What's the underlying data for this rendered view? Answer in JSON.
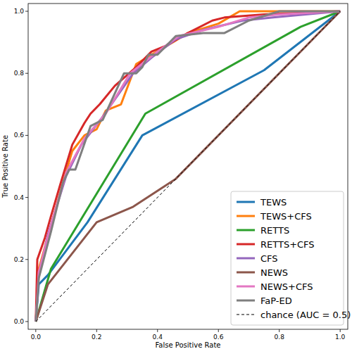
{
  "chart_data": {
    "type": "line",
    "x_label": "False Positive Rate",
    "y_label": "True Positive Rate",
    "xlim": [
      -0.025,
      1.025
    ],
    "ylim": [
      -0.025,
      1.025
    ],
    "xticks": [
      {
        "value": 0,
        "label": "0.0"
      },
      0.2,
      0.4,
      0.6,
      0.8,
      {
        "value": 1,
        "label": "1.0"
      }
    ],
    "yticks": [
      {
        "value": 0,
        "label": "0.0"
      },
      0.2,
      0.4,
      0.6,
      0.8,
      {
        "value": 1,
        "label": "1.0"
      }
    ],
    "grid": false,
    "legend": "lower right",
    "series": [
      {
        "name": "TEWS",
        "color": "#1f77b4",
        "line_style": "solid",
        "x": [
          0,
          0.01,
          0.04,
          0.17,
          0.35,
          0.75,
          1
        ],
        "values": [
          0,
          0.12,
          0.15,
          0.32,
          0.6,
          0.81,
          1
        ]
      },
      {
        "name": "TEWS+CFS",
        "color": "#ff7f0e",
        "line_style": "solid",
        "x": [
          0,
          0.01,
          0.05,
          0.09,
          0.12,
          0.16,
          0.2,
          0.23,
          0.28,
          0.33,
          0.38,
          0.45,
          0.5,
          0.6,
          0.67,
          1
        ],
        "values": [
          0,
          0.17,
          0.31,
          0.45,
          0.55,
          0.6,
          0.62,
          0.68,
          0.7,
          0.83,
          0.86,
          0.9,
          0.93,
          0.96,
          1.0,
          1
        ]
      },
      {
        "name": "RETTS",
        "color": "#2ca02c",
        "line_style": "solid",
        "x": [
          0,
          0.05,
          0.36,
          0.87,
          1
        ],
        "values": [
          0,
          0.17,
          0.67,
          0.95,
          1
        ]
      },
      {
        "name": "RETTS+CFS",
        "color": "#d62728",
        "line_style": "solid",
        "x": [
          0,
          0.005,
          0.03,
          0.05,
          0.08,
          0.12,
          0.16,
          0.18,
          0.21,
          0.26,
          0.33,
          0.38,
          0.43,
          0.5,
          0.58,
          0.62,
          0.75,
          1
        ],
        "values": [
          0,
          0.2,
          0.27,
          0.34,
          0.44,
          0.57,
          0.64,
          0.67,
          0.7,
          0.76,
          0.82,
          0.87,
          0.89,
          0.93,
          0.97,
          0.98,
          0.99,
          1
        ]
      },
      {
        "name": "CFS",
        "color": "#9467bd",
        "line_style": "solid",
        "x": [
          0,
          0.01,
          0.04,
          0.1,
          0.15,
          0.22,
          0.32,
          0.38,
          0.46,
          0.55,
          0.68,
          0.78,
          1
        ],
        "values": [
          0,
          0.15,
          0.28,
          0.47,
          0.57,
          0.66,
          0.8,
          0.85,
          0.91,
          0.94,
          0.97,
          0.98,
          1
        ]
      },
      {
        "name": "NEWS",
        "color": "#8c564b",
        "line_style": "solid",
        "x": [
          0,
          0.04,
          0.2,
          0.32,
          0.46,
          1
        ],
        "values": [
          0,
          0.12,
          0.32,
          0.37,
          0.46,
          1
        ]
      },
      {
        "name": "NEWS+CFS",
        "color": "#e377c2",
        "line_style": "solid",
        "x": [
          0,
          0.01,
          0.05,
          0.1,
          0.16,
          0.23,
          0.31,
          0.4,
          0.47,
          0.6,
          0.7,
          0.8,
          1
        ],
        "values": [
          0,
          0.16,
          0.31,
          0.48,
          0.59,
          0.67,
          0.8,
          0.87,
          0.92,
          0.95,
          0.98,
          0.99,
          1
        ]
      },
      {
        "name": "FaP-ED",
        "color": "#7f7f7f",
        "line_style": "solid",
        "x": [
          0,
          0.01,
          0.05,
          0.09,
          0.11,
          0.13,
          0.18,
          0.22,
          0.29,
          0.33,
          0.35,
          0.37,
          0.4,
          0.46,
          0.55,
          0.62,
          0.7,
          0.8,
          1
        ],
        "values": [
          0,
          0.14,
          0.29,
          0.45,
          0.49,
          0.49,
          0.63,
          0.65,
          0.8,
          0.8,
          0.82,
          0.86,
          0.86,
          0.92,
          0.93,
          0.93,
          0.97,
          1.0,
          1
        ]
      },
      {
        "name": "chance (AUC = 0.5)",
        "color": "#000000",
        "line_style": "dashed",
        "x": [
          0,
          1
        ],
        "values": [
          0,
          1
        ]
      }
    ]
  }
}
